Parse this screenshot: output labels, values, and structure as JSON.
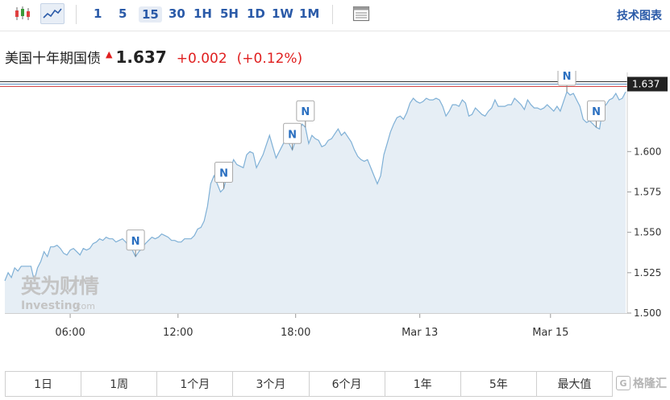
{
  "toolbar": {
    "intervals": [
      "1",
      "5",
      "15",
      "30",
      "1H",
      "5H",
      "1D",
      "1W",
      "1M"
    ],
    "active_interval": "15",
    "tech_chart_link": "技术图表"
  },
  "quote": {
    "name": "美国十年期国债",
    "price": "1.637",
    "change": "+0.002",
    "change_pct": "(+0.12%)",
    "up_color": "#e02020"
  },
  "watermark": {
    "chinese": "英为财情",
    "brand": "Investing",
    "suffix": ".com"
  },
  "ranges": [
    "1日",
    "1周",
    "1个月",
    "3个月",
    "6个月",
    "1年",
    "5年",
    "最大值"
  ],
  "brand_logo_text": "格隆汇",
  "chart_data": {
    "type": "area",
    "x_tick_labels": [
      "06:00",
      "12:00",
      "18:00",
      "Mar 13",
      "Mar 15"
    ],
    "y_ticks": [
      1.5,
      1.525,
      1.55,
      1.575,
      1.6
    ],
    "y_tick_labels": [
      "1.500",
      "1.525",
      "1.550",
      "1.575",
      "1.600"
    ],
    "ylim": [
      1.5,
      1.645
    ],
    "grid": false,
    "last_price_label": "1.637",
    "line_color": "#7fb0d6",
    "fill_color": "#e6eef5",
    "news_marker_label": "N",
    "news_marker_indices": [
      40,
      67,
      88,
      92,
      172,
      181
    ],
    "values": [
      1.52,
      1.525,
      1.522,
      1.528,
      1.526,
      1.529,
      1.529,
      1.529,
      1.529,
      1.52,
      1.528,
      1.532,
      1.538,
      1.535,
      1.541,
      1.541,
      1.542,
      1.54,
      1.537,
      1.536,
      1.539,
      1.54,
      1.538,
      1.536,
      1.54,
      1.539,
      1.54,
      1.543,
      1.544,
      1.546,
      1.545,
      1.547,
      1.546,
      1.546,
      1.544,
      1.545,
      1.546,
      1.544,
      1.541,
      1.539,
      1.535,
      1.538,
      1.54,
      1.543,
      1.545,
      1.547,
      1.546,
      1.547,
      1.549,
      1.548,
      1.547,
      1.545,
      1.545,
      1.544,
      1.544,
      1.546,
      1.546,
      1.546,
      1.548,
      1.552,
      1.553,
      1.557,
      1.566,
      1.58,
      1.585,
      1.58,
      1.575,
      1.577,
      1.585,
      1.589,
      1.595,
      1.592,
      1.591,
      1.59,
      1.598,
      1.6,
      1.599,
      1.59,
      1.594,
      1.598,
      1.604,
      1.61,
      1.603,
      1.596,
      1.6,
      1.604,
      1.608,
      1.605,
      1.601,
      1.607,
      1.612,
      1.617,
      1.615,
      1.605,
      1.61,
      1.608,
      1.607,
      1.603,
      1.604,
      1.607,
      1.608,
      1.611,
      1.614,
      1.61,
      1.612,
      1.609,
      1.606,
      1.601,
      1.597,
      1.595,
      1.594,
      1.595,
      1.59,
      1.585,
      1.58,
      1.585,
      1.598,
      1.605,
      1.612,
      1.617,
      1.621,
      1.622,
      1.62,
      1.624,
      1.63,
      1.633,
      1.631,
      1.63,
      1.631,
      1.633,
      1.632,
      1.632,
      1.633,
      1.632,
      1.628,
      1.622,
      1.625,
      1.629,
      1.629,
      1.628,
      1.632,
      1.63,
      1.622,
      1.623,
      1.627,
      1.625,
      1.623,
      1.622,
      1.625,
      1.627,
      1.632,
      1.628,
      1.628,
      1.628,
      1.629,
      1.629,
      1.633,
      1.631,
      1.629,
      1.626,
      1.632,
      1.629,
      1.627,
      1.627,
      1.626,
      1.627,
      1.629,
      1.627,
      1.625,
      1.628,
      1.625,
      1.631,
      1.637,
      1.635,
      1.636,
      1.632,
      1.628,
      1.62,
      1.618,
      1.619,
      1.617,
      1.615,
      1.614,
      1.627,
      1.629,
      1.632,
      1.633,
      1.636,
      1.632,
      1.633,
      1.637
    ]
  }
}
